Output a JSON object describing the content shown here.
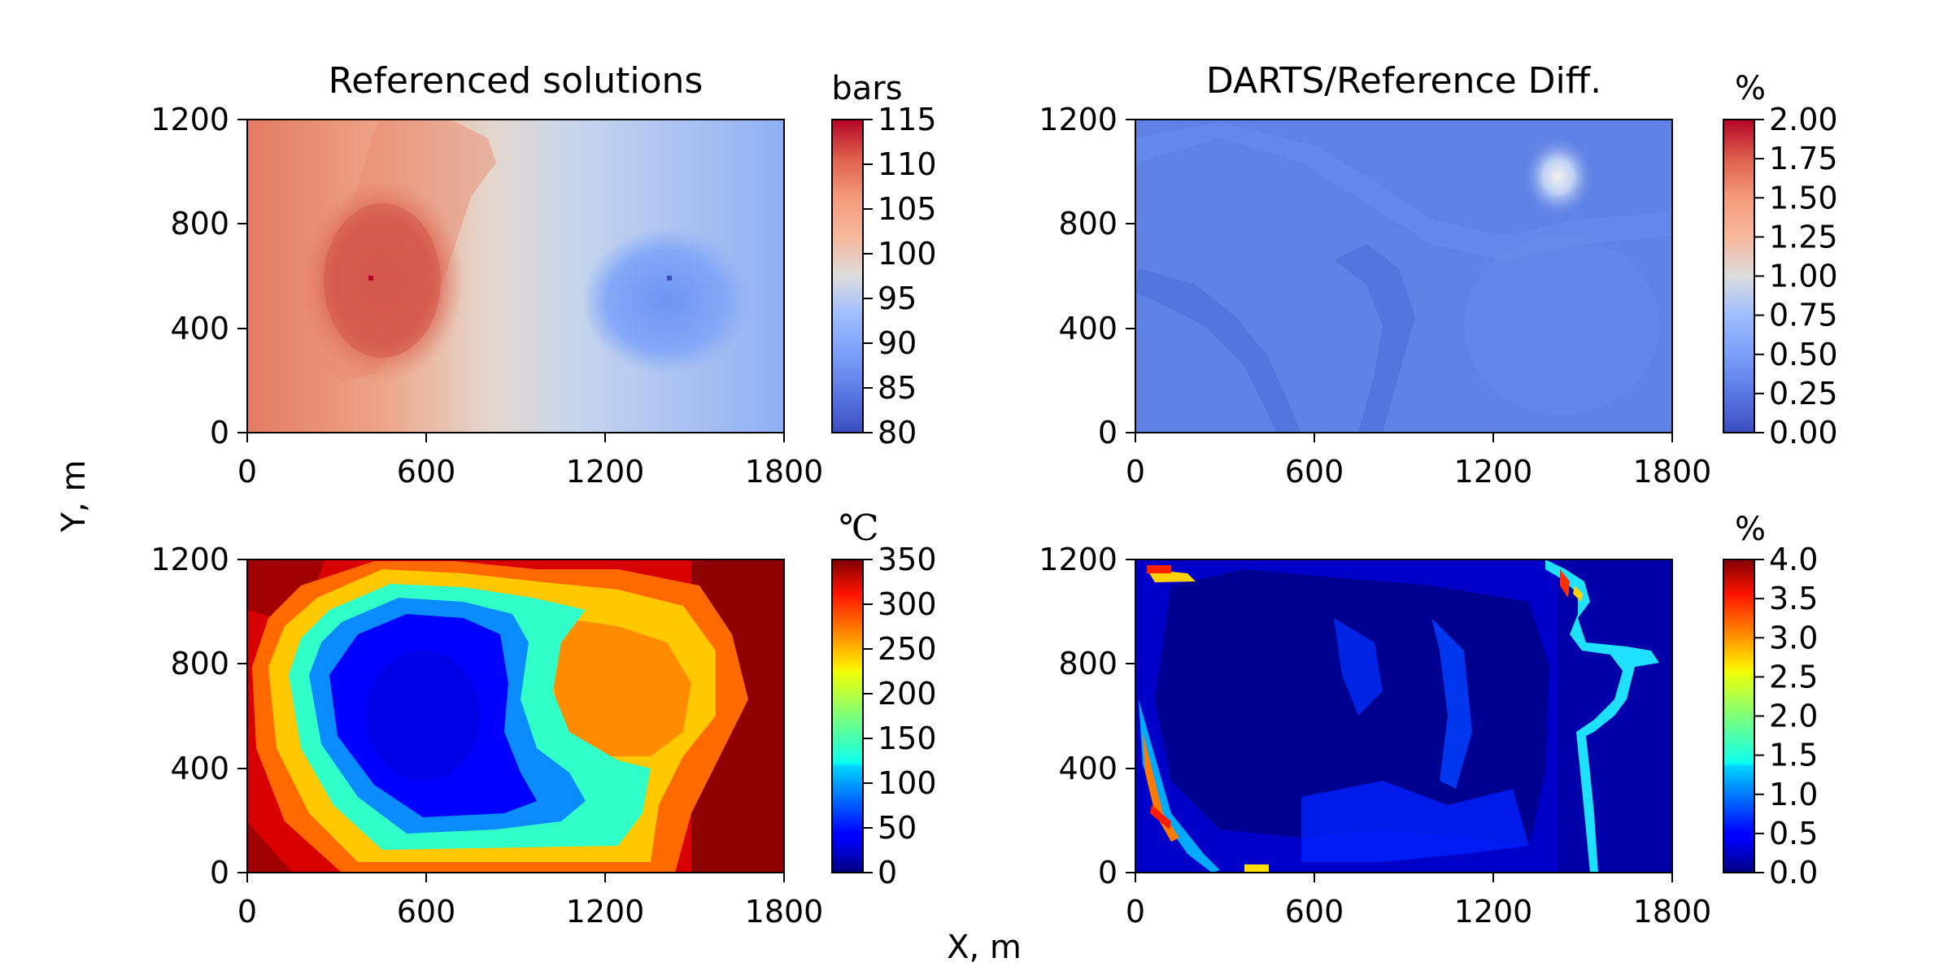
{
  "figure": {
    "xlabel": "X, m",
    "ylabel": "Y, m"
  },
  "chart_data": [
    {
      "type": "heatmap",
      "title": "Referenced solutions",
      "xlabel": "",
      "ylabel": "",
      "xlim": [
        0,
        1800
      ],
      "ylim": [
        0,
        1200
      ],
      "x_ticks": [
        "0",
        "600",
        "1200",
        "1800"
      ],
      "y_ticks": [
        "0",
        "400",
        "800",
        "1200"
      ],
      "colormap": "coolwarm",
      "colorbar": {
        "label": "bars",
        "range": [
          80,
          115
        ],
        "ticks": [
          "80",
          "85",
          "90",
          "95",
          "100",
          "105",
          "110",
          "115"
        ]
      },
      "field": {
        "baseline": "linear gradient from about 107 at x=0 to about 87 at x=1800",
        "features": [
          {
            "kind": "high pressure zone",
            "center": [
              430,
              580
            ],
            "peak": 113
          },
          {
            "kind": "low pressure zone",
            "center": [
              1420,
              580
            ],
            "min": 80
          }
        ]
      }
    },
    {
      "type": "heatmap",
      "title": "DARTS/Reference Diff.",
      "xlabel": "",
      "ylabel": "",
      "xlim": [
        0,
        1800
      ],
      "ylim": [
        0,
        1200
      ],
      "x_ticks": [
        "0",
        "600",
        "1200",
        "1800"
      ],
      "y_ticks": [
        "0",
        "400",
        "800",
        "1200"
      ],
      "colormap": "coolwarm",
      "colorbar": {
        "label": "%",
        "range": [
          0,
          2
        ],
        "ticks": [
          "0.00",
          "0.25",
          "0.50",
          "0.75",
          "1.00",
          "1.25",
          "1.50",
          "1.75",
          "2.00"
        ]
      },
      "field": {
        "baseline": 0.2,
        "features": [
          {
            "kind": "local maximum",
            "center": [
              1430,
              960
            ],
            "peak": 1.0
          }
        ]
      }
    },
    {
      "type": "heatmap",
      "title": "",
      "xlabel": "",
      "ylabel": "",
      "xlim": [
        0,
        1800
      ],
      "ylim": [
        0,
        1200
      ],
      "x_ticks": [
        "0",
        "600",
        "1200",
        "1800"
      ],
      "y_ticks": [
        "0",
        "400",
        "800",
        "1200"
      ],
      "colormap": "jet",
      "colorbar": {
        "label": "℃",
        "range": [
          0,
          350
        ],
        "ticks": [
          "0",
          "50",
          "100",
          "150",
          "200",
          "250",
          "300",
          "350"
        ]
      },
      "field": {
        "baseline": 320,
        "features": [
          {
            "kind": "cold plume",
            "center": [
              560,
              620
            ],
            "min": 30
          },
          {
            "kind": "warm region",
            "center": [
              1150,
              650
            ],
            "value": 270
          }
        ]
      }
    },
    {
      "type": "heatmap",
      "title": "",
      "xlabel": "",
      "ylabel": "",
      "xlim": [
        0,
        1800
      ],
      "ylim": [
        0,
        1200
      ],
      "x_ticks": [
        "0",
        "600",
        "1200",
        "1800"
      ],
      "y_ticks": [
        "0",
        "400",
        "800",
        "1200"
      ],
      "colormap": "jet",
      "colorbar": {
        "label": "%",
        "range": [
          0,
          4
        ],
        "ticks": [
          "0.0",
          "0.5",
          "1.0",
          "1.5",
          "2.0",
          "2.5",
          "3.0",
          "3.5",
          "4.0"
        ]
      },
      "field": {
        "baseline": 0.2,
        "features": [
          {
            "kind": "thermal front error",
            "peak": 3.8
          }
        ]
      }
    }
  ]
}
